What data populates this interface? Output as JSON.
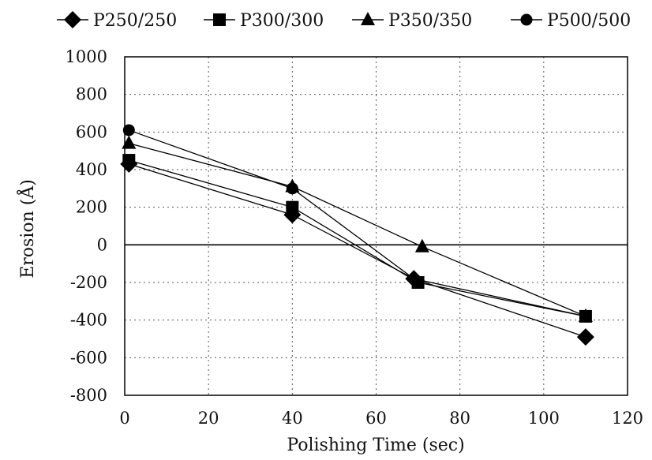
{
  "chart_data": {
    "type": "line",
    "title": "",
    "xlabel": "Polishing Time (sec)",
    "ylabel": "Erosion (Å)",
    "xlim": [
      0,
      120
    ],
    "ylim": [
      -800,
      1000
    ],
    "x_ticks": [
      "0",
      "20",
      "40",
      "60",
      "80",
      "100",
      "120"
    ],
    "y_ticks": [
      "1000",
      "800",
      "600",
      "400",
      "200",
      "0",
      "-200",
      "-400",
      "-600",
      "-800"
    ],
    "grid": "dashed",
    "legend_position": "top",
    "series": [
      {
        "name": "P250/250",
        "marker": "diamond",
        "x": [
          1,
          40,
          69,
          110
        ],
        "y": [
          430,
          160,
          -180,
          -490
        ]
      },
      {
        "name": "P300/300",
        "marker": "square",
        "x": [
          1,
          40,
          70,
          110
        ],
        "y": [
          450,
          200,
          -200,
          -380
        ]
      },
      {
        "name": "P350/350",
        "marker": "triangle",
        "x": [
          1,
          40,
          71,
          110
        ],
        "y": [
          540,
          310,
          -10,
          -380
        ]
      },
      {
        "name": "P500/500",
        "marker": "circle",
        "x": [
          1,
          40,
          69,
          110
        ],
        "y": [
          610,
          300,
          -180,
          -380
        ]
      }
    ]
  }
}
